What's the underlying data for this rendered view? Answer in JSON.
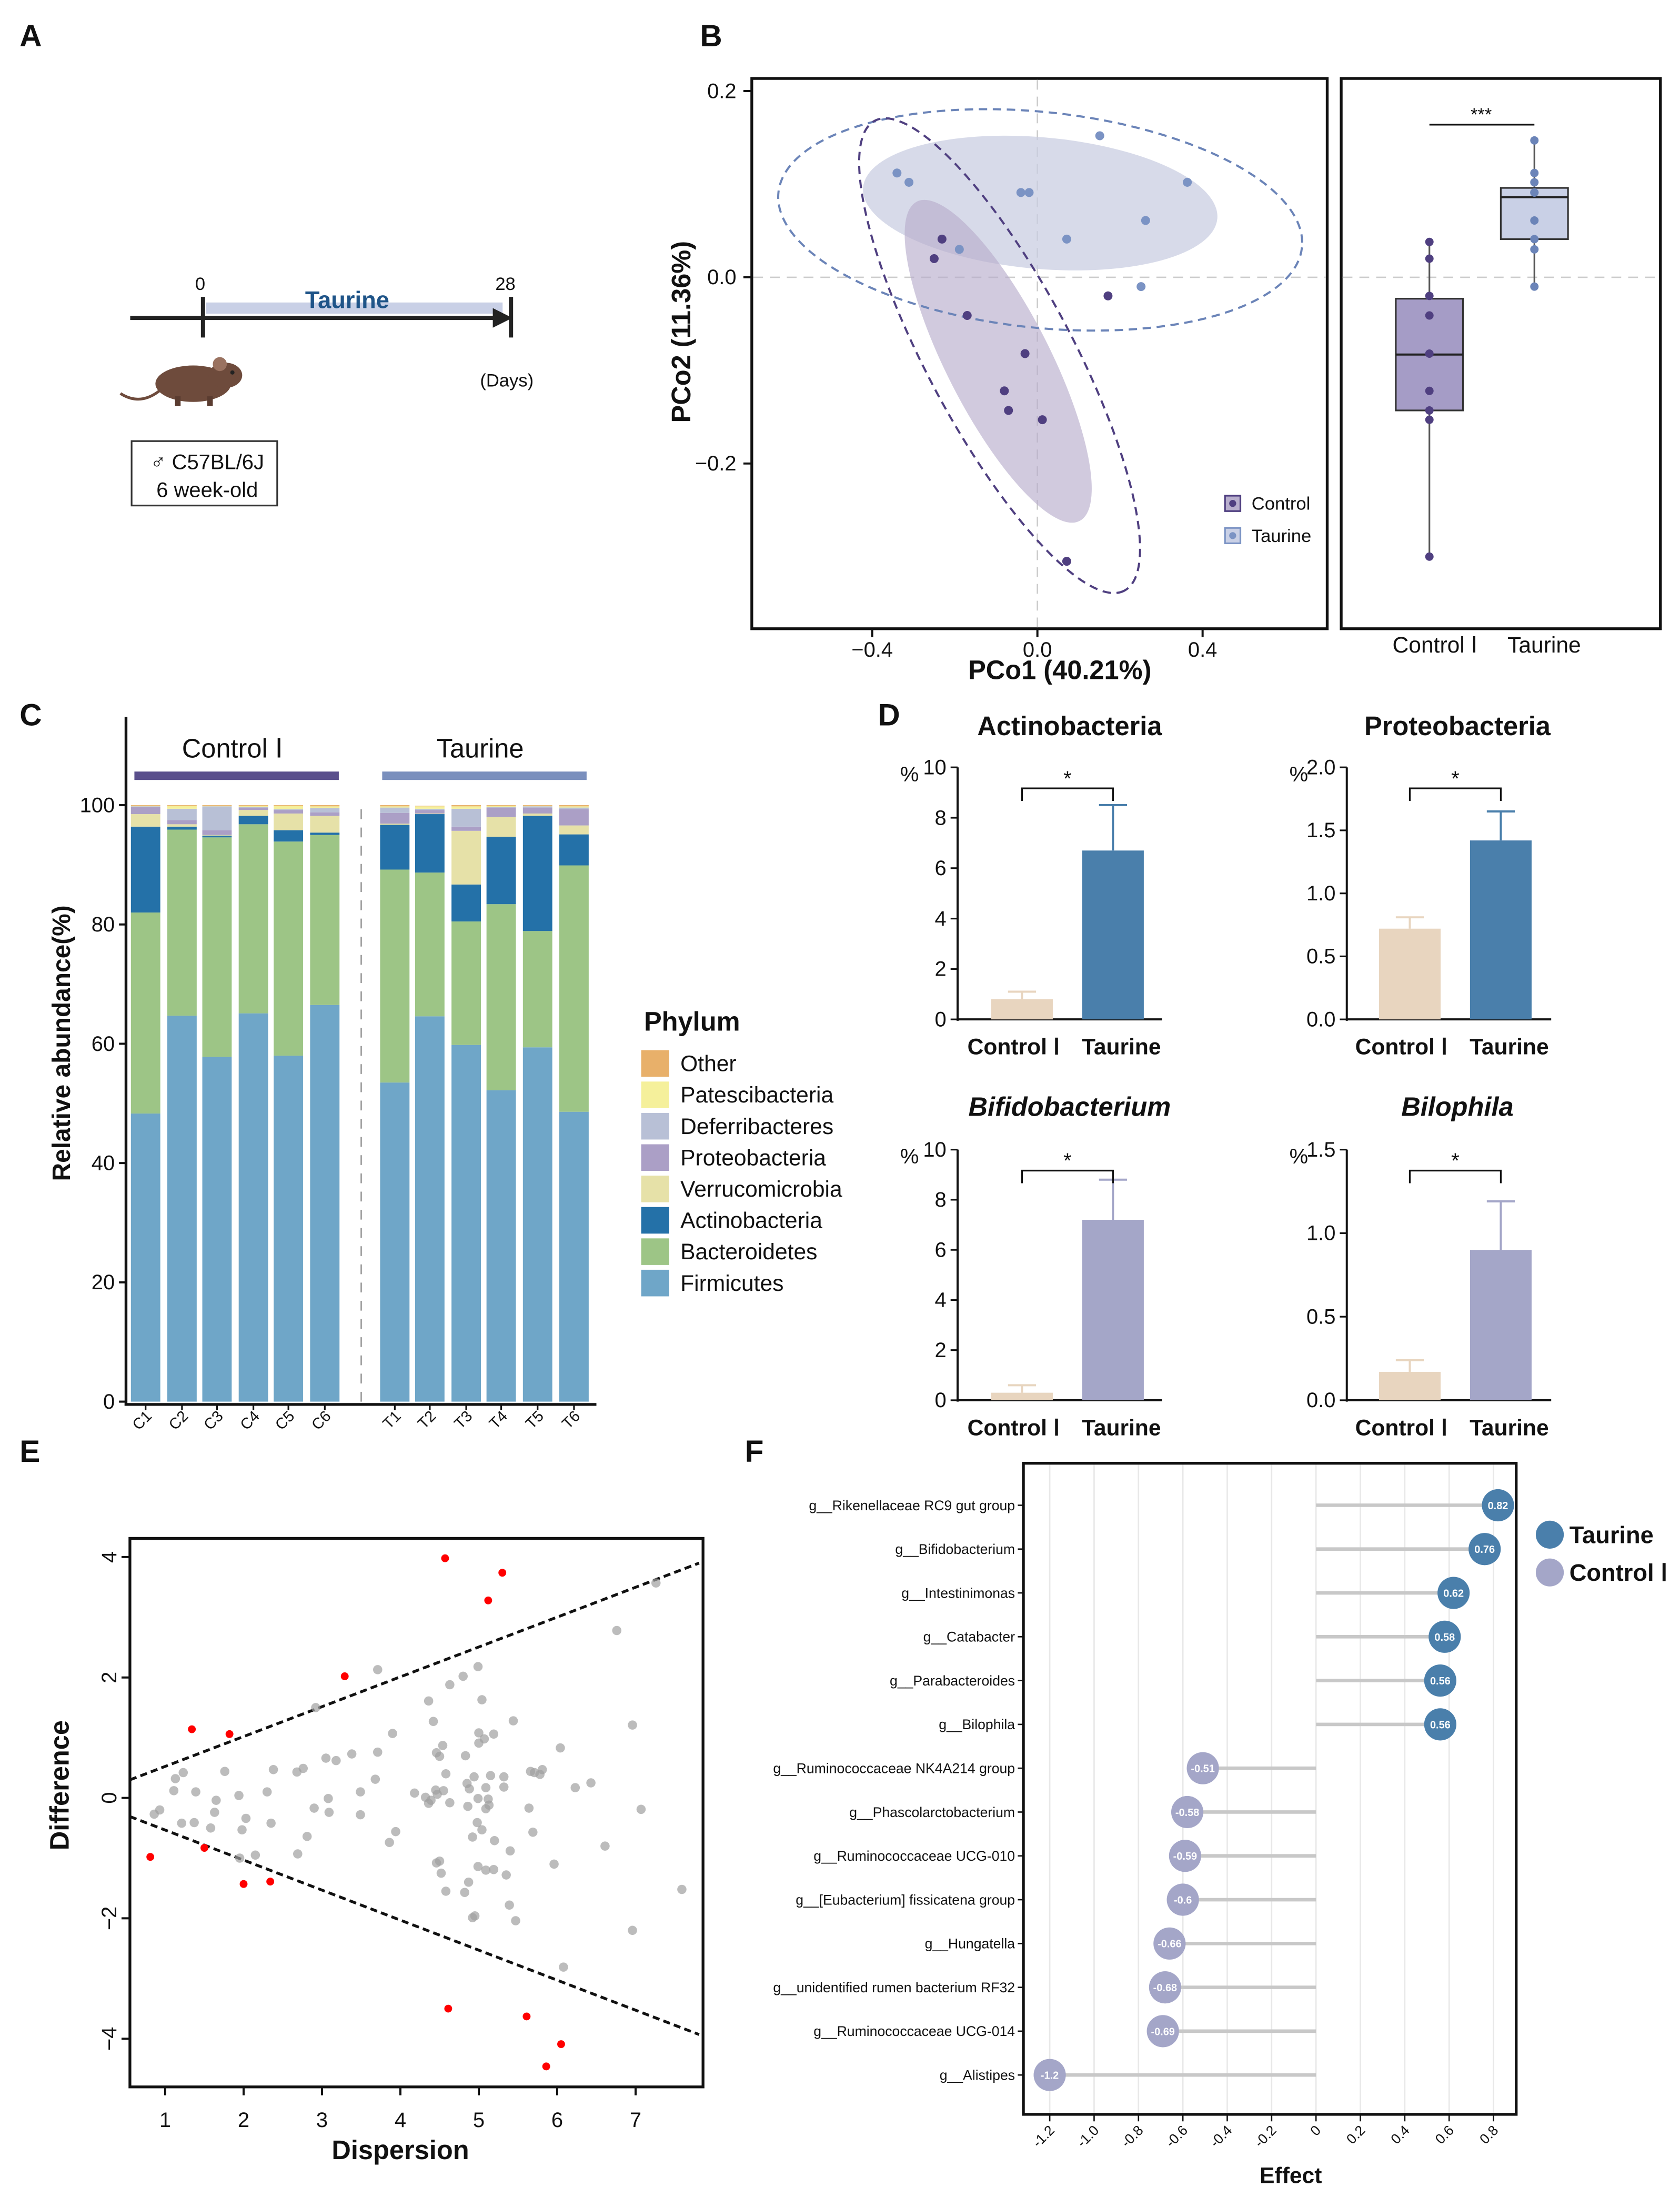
{
  "panel_labels": {
    "a": "A",
    "b": "B",
    "c": "C",
    "d": "D",
    "e": "E",
    "f": "F"
  },
  "panel_a": {
    "day_start": "0",
    "day_end": "28",
    "treatment": "Taurine",
    "unit": "(Days)",
    "strain": "♂ C57BL/6J",
    "age": "6 week-old",
    "treatment_color": "#1f5488"
  },
  "chart_data": [
    {
      "type": "scatter",
      "xlabel": "PCo1 (40.21%)",
      "ylabel": "PCo2 (11.36%)",
      "xlim": [
        -0.688,
        0.705
      ],
      "ylim": [
        -0.377,
        0.214
      ],
      "x_ticks": [
        -0.4,
        0.0,
        0.4
      ],
      "x_tick_labels": [
        "−0.4",
        "0.0",
        "0.4"
      ],
      "y_ticks": [
        0.2,
        0.0,
        -0.2
      ],
      "y_tick_labels": [
        "0.2",
        "0.0",
        "−0.2"
      ],
      "legend_position": "bottom-right",
      "series": [
        {
          "name": "Control",
          "color": "#4f3f80",
          "x": [
            -0.231,
            -0.25,
            0.171,
            -0.17,
            -0.03,
            -0.08,
            -0.07,
            0.012,
            0.071
          ],
          "y": [
            0.041,
            0.02,
            -0.02,
            -0.041,
            -0.082,
            -0.122,
            -0.143,
            -0.153,
            -0.305
          ]
        },
        {
          "name": "Taurine",
          "color": "#7b93c4",
          "x": [
            0.151,
            -0.34,
            -0.311,
            -0.04,
            -0.02,
            0.363,
            0.262,
            0.071,
            -0.189,
            0.251
          ],
          "y": [
            0.152,
            0.112,
            0.102,
            0.091,
            0.091,
            0.102,
            0.061,
            0.041,
            0.03,
            -0.01
          ]
        }
      ]
    },
    {
      "type": "box",
      "categories": [
        "Control Ⅰ",
        "Taurine"
      ],
      "significance": "***",
      "groups": [
        {
          "color": "#4f3f80",
          "fill": "#a59cc6",
          "whisker_low": -0.3,
          "q1": -0.143,
          "median": -0.083,
          "q3": -0.023,
          "whisker_high": 0.038,
          "points": [
            0.038,
            0.02,
            -0.02,
            -0.041,
            -0.082,
            -0.122,
            -0.143,
            -0.153,
            -0.3
          ]
        },
        {
          "color": "#6b84b8",
          "fill": "#c9d0e6",
          "whisker_low": -0.012,
          "q1": 0.041,
          "median": 0.086,
          "q3": 0.096,
          "whisker_high": 0.147,
          "points": [
            0.147,
            0.112,
            0.102,
            0.091,
            0.091,
            0.061,
            0.041,
            0.03,
            -0.01
          ]
        }
      ]
    },
    {
      "type": "bar",
      "stacked": true,
      "ylabel": "Relative abundance(%)",
      "ylim": [
        0,
        100
      ],
      "y_ticks": [
        0,
        20,
        40,
        60,
        80,
        100
      ],
      "y_tick_labels": [
        "0",
        "20",
        "40",
        "60",
        "80",
        "100"
      ],
      "groups": [
        {
          "label": "Control Ⅰ",
          "color": "#5a4f8c"
        },
        {
          "label": "Taurine",
          "color": "#7a8fbd"
        }
      ],
      "categories": [
        "C1",
        "C2",
        "C3",
        "C4",
        "C5",
        "C6",
        "T1",
        "T2",
        "T3",
        "T4",
        "T5",
        "T6"
      ],
      "legend_title": "Phylum",
      "legend_position": "right",
      "series": [
        {
          "name": "Firmicutes",
          "color": "#6fa6c8",
          "values": [
            48.3,
            64.7,
            57.8,
            65.1,
            58.0,
            66.5,
            53.5,
            64.6,
            59.8,
            52.2,
            59.4,
            48.6
          ]
        },
        {
          "name": "Bacteroidetes",
          "color": "#9dc586",
          "values": [
            33.7,
            31.2,
            36.8,
            31.7,
            35.9,
            28.5,
            35.7,
            24.1,
            20.7,
            31.2,
            19.5,
            41.3
          ]
        },
        {
          "name": "Actinobacteria",
          "color": "#2471a8",
          "values": [
            14.4,
            0.5,
            0.3,
            1.4,
            1.9,
            0.4,
            7.5,
            9.8,
            6.2,
            11.3,
            19.3,
            5.2
          ]
        },
        {
          "name": "Verrucomicrobia",
          "color": "#e6e1a8",
          "values": [
            2.1,
            0.4,
            0.1,
            1.0,
            2.8,
            2.8,
            0.2,
            0.1,
            9.0,
            3.3,
            0.4,
            1.5
          ]
        },
        {
          "name": "Proteobacteria",
          "color": "#ab9fc6",
          "values": [
            1.2,
            0.7,
            0.8,
            0.4,
            0.6,
            0.6,
            1.8,
            0.6,
            0.7,
            1.6,
            1.0,
            2.7
          ]
        },
        {
          "name": "Deferribacteres",
          "color": "#b8c0d6",
          "values": [
            0.1,
            1.9,
            4.0,
            0.1,
            0.1,
            0.7,
            0.9,
            0.2,
            3.0,
            0.1,
            0.2,
            0.3
          ]
        },
        {
          "name": "Patescibacteria",
          "color": "#f5f09b",
          "values": [
            0.1,
            0.5,
            0.1,
            0.2,
            0.6,
            0.3,
            0.2,
            0.4,
            0.4,
            0.2,
            0.1,
            0.2
          ]
        },
        {
          "name": "Other",
          "color": "#e8b06a",
          "values": [
            0.1,
            0.1,
            0.1,
            0.1,
            0.1,
            0.2,
            0.2,
            0.1,
            0.2,
            0.1,
            0.1,
            0.2
          ]
        }
      ],
      "legend_order": [
        "Other",
        "Patescibacteria",
        "Deferribacteres",
        "Proteobacteria",
        "Verrucomicrobia",
        "Actinobacteria",
        "Bacteroidetes",
        "Firmicutes"
      ]
    },
    {
      "type": "bar",
      "title": "Actinobacteria",
      "title_italic": false,
      "ylabel": "%",
      "categories": [
        "Control Ⅰ",
        "Taurine"
      ],
      "values": [
        0.8,
        6.7
      ],
      "error_upper": [
        1.1,
        8.5
      ],
      "colors": [
        "#e8d5bf",
        "#4a7fab"
      ],
      "ylim": [
        0,
        10
      ],
      "y_ticks": [
        0,
        2,
        4,
        6,
        8,
        10
      ],
      "y_tick_labels": [
        "0",
        "2",
        "4",
        "6",
        "8",
        "10"
      ],
      "significance": "*"
    },
    {
      "type": "bar",
      "title": "Proteobacteria",
      "title_italic": false,
      "ylabel": "%",
      "categories": [
        "Control Ⅰ",
        "Taurine"
      ],
      "values": [
        0.72,
        1.42
      ],
      "error_upper": [
        0.81,
        1.65
      ],
      "colors": [
        "#e8d5bf",
        "#4a7fab"
      ],
      "ylim": [
        0,
        2.0
      ],
      "y_ticks": [
        0,
        0.5,
        1.0,
        1.5,
        2.0
      ],
      "y_tick_labels": [
        "0.0",
        "0.5",
        "1.0",
        "1.5",
        "2.0"
      ],
      "significance": "*"
    },
    {
      "type": "bar",
      "title": "Bifidobacterium",
      "title_italic": true,
      "ylabel": "%",
      "categories": [
        "Control Ⅰ",
        "Taurine"
      ],
      "values": [
        0.3,
        7.2
      ],
      "error_upper": [
        0.6,
        8.8
      ],
      "colors": [
        "#e8d5bf",
        "#a4a6c8"
      ],
      "ylim": [
        0,
        10
      ],
      "y_ticks": [
        0,
        2,
        4,
        6,
        8,
        10
      ],
      "y_tick_labels": [
        "0",
        "2",
        "4",
        "6",
        "8",
        "10"
      ],
      "significance": "*"
    },
    {
      "type": "bar",
      "title": "Bilophila",
      "title_italic": true,
      "ylabel": "%",
      "categories": [
        "Control Ⅰ",
        "Taurine"
      ],
      "values": [
        0.17,
        0.9
      ],
      "error_upper": [
        0.24,
        1.19
      ],
      "colors": [
        "#e8d5bf",
        "#a4a6c8"
      ],
      "ylim": [
        0,
        1.5
      ],
      "y_ticks": [
        0,
        0.5,
        1.0,
        1.5
      ],
      "y_tick_labels": [
        "0.0",
        "0.5",
        "1.0",
        "1.5"
      ],
      "significance": "*"
    },
    {
      "type": "scatter",
      "xlabel": "Dispersion",
      "ylabel": "Difference",
      "xlim": [
        0.55,
        7.86
      ],
      "ylim": [
        -4.8,
        4.31
      ],
      "x_ticks": [
        1,
        2,
        3,
        4,
        5,
        6,
        7
      ],
      "x_tick_labels": [
        "1",
        "2",
        "3",
        "4",
        "5",
        "6",
        "7"
      ],
      "y_ticks": [
        4,
        2,
        0,
        -2,
        -4
      ],
      "y_tick_labels": [
        "4",
        "2",
        "0",
        "−2",
        "−4"
      ],
      "boundaries": [
        {
          "x": [
            0.55,
            7.81
          ],
          "y": [
            0.3,
            3.9
          ]
        },
        {
          "x": [
            0.55,
            7.81
          ],
          "y": [
            -0.31,
            -3.93
          ]
        }
      ],
      "series": [
        {
          "color": "#ff0000",
          "x": [
            4.57,
            5.3,
            5.12,
            3.29,
            1.34,
            1.82,
            0.81,
            1.5,
            2.0,
            2.34,
            4.61,
            5.61,
            6.05,
            5.86
          ],
          "y": [
            3.98,
            3.74,
            3.28,
            2.02,
            1.14,
            1.06,
            -0.98,
            -0.83,
            -1.43,
            -1.39,
            -3.5,
            -3.63,
            -4.09,
            -4.46
          ]
        },
        {
          "color": "#a0a0a0",
          "x": [
            7.26,
            6.76,
            3.71,
            4.99,
            4.8,
            4.63,
            5.04,
            4.36,
            2.92,
            4.42,
            5.44,
            6.96,
            3.9,
            5.0,
            5.19,
            5.07,
            5.0,
            4.54,
            6.04,
            3.38,
            3.71,
            4.46,
            4.5,
            4.83,
            3.05,
            3.18,
            1.23,
            1.76,
            2.38,
            2.68,
            2.76,
            4.58,
            5.66,
            5.71,
            5.78,
            5.81,
            4.94,
            5.15,
            5.32,
            1.13,
            3.68,
            4.85,
            6.43,
            6.23,
            4.88,
            5.09,
            5.32,
            1.11,
            1.39,
            2.3,
            3.49,
            4.18,
            4.45,
            4.55,
            4.47,
            1.94,
            4.32,
            4.39,
            4.36,
            4.99,
            5.12,
            5.13,
            5.09,
            4.63,
            4.86,
            1.65,
            3.08,
            2.9,
            3.09,
            5.64,
            7.07,
            0.93,
            0.86,
            1.63,
            3.49,
            2.03,
            1.21,
            1.37,
            2.35,
            4.98,
            1.58,
            1.98,
            5.04,
            3.94,
            5.69,
            2.81,
            4.92,
            5.2,
            3.86,
            6.61,
            5.4,
            2.69,
            2.15,
            1.95,
            4.46,
            4.5,
            5.96,
            4.99,
            4.52,
            5.09,
            5.19,
            5.35,
            4.87,
            7.59,
            4.58,
            4.82,
            5.39,
            4.95,
            4.92,
            5.47,
            6.96,
            6.08
          ],
          "y": [
            3.57,
            2.78,
            2.13,
            2.18,
            2.02,
            1.88,
            1.63,
            1.61,
            1.5,
            1.27,
            1.28,
            1.21,
            1.07,
            1.08,
            1.06,
            0.98,
            0.91,
            0.87,
            0.83,
            0.73,
            0.76,
            0.75,
            0.69,
            0.7,
            0.66,
            0.62,
            0.42,
            0.44,
            0.47,
            0.43,
            0.49,
            0.4,
            0.44,
            0.42,
            0.39,
            0.47,
            0.35,
            0.37,
            0.35,
            0.32,
            0.31,
            0.24,
            0.25,
            0.17,
            0.15,
            0.17,
            0.18,
            0.12,
            0.1,
            0.1,
            0.1,
            0.08,
            0.13,
            0.12,
            0.06,
            0.04,
            0.01,
            -0.04,
            -0.09,
            -0.01,
            -0.02,
            -0.12,
            -0.18,
            -0.08,
            -0.14,
            -0.04,
            -0.01,
            -0.17,
            -0.24,
            -0.17,
            -0.19,
            -0.2,
            -0.27,
            -0.24,
            -0.28,
            -0.34,
            -0.42,
            -0.41,
            -0.42,
            -0.41,
            -0.5,
            -0.53,
            -0.53,
            -0.56,
            -0.57,
            -0.64,
            -0.65,
            -0.71,
            -0.74,
            -0.8,
            -0.88,
            -0.93,
            -0.95,
            -1.0,
            -1.08,
            -1.05,
            -1.1,
            -1.14,
            -1.25,
            -1.2,
            -1.19,
            -1.28,
            -1.4,
            -1.52,
            -1.55,
            -1.57,
            -1.78,
            -1.96,
            -1.99,
            -2.04,
            -2.2,
            -2.81
          ]
        }
      ]
    },
    {
      "type": "lollipop",
      "xlabel": "Effect",
      "xlim": [
        -1.25,
        0.9
      ],
      "x_ticks": [
        -1.2,
        -1.0,
        -0.8,
        -0.6,
        -0.4,
        -0.2,
        0,
        0.2,
        0.4,
        0.6,
        0.8
      ],
      "x_tick_labels": [
        "-1.2",
        "-1.0",
        "-0.8",
        "-0.6",
        "-0.4",
        "-0.2",
        "0",
        "0.2",
        "0.4",
        "0.6",
        "0.8"
      ],
      "legend_position": "right",
      "legend": [
        {
          "name": "Taurine",
          "color": "#4a7fab"
        },
        {
          "name": "Control Ⅰ",
          "color": "#a4a6c8"
        }
      ],
      "categories": [
        "g__Rikenellaceae RC9 gut group",
        "g__Bifidobacterium",
        "g__Intestinimonas",
        "g__Catabacter",
        "g__Parabacteroides",
        "g__Bilophila",
        "g__Ruminococcaceae NK4A214 group",
        "g__Phascolarctobacterium",
        "g__Ruminococcaceae UCG-010",
        "g__[Eubacterium] fissicatena group",
        "g__Hungatella",
        "g__unidentified rumen bacterium RF32",
        "g__Ruminococcaceae UCG-014",
        "g__Alistipes"
      ],
      "values": [
        0.82,
        0.76,
        0.62,
        0.58,
        0.56,
        0.56,
        -0.51,
        -0.58,
        -0.59,
        -0.6,
        -0.66,
        -0.68,
        -0.69,
        -1.2
      ],
      "value_labels": [
        "0.82",
        "0.76",
        "0.62",
        "0.58",
        "0.56",
        "0.56",
        "-0.51",
        "-0.58",
        "-0.59",
        "-0.6",
        "-0.66",
        "-0.68",
        "-0.69",
        "-1.2"
      ]
    }
  ]
}
